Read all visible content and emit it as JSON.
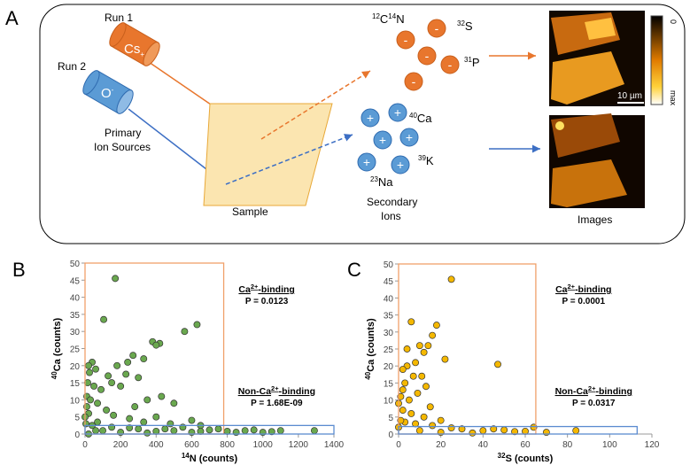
{
  "diagram": {
    "panel": "A",
    "run1": "Run 1",
    "run2": "Run 2",
    "cs": [
      "Cs",
      "+"
    ],
    "o": [
      "O",
      "-"
    ],
    "primary": [
      "Primary",
      "Ion Sources"
    ],
    "sample": "Sample",
    "secondary": [
      "Secondary",
      "Ions"
    ],
    "images": "Images",
    "anion_sign": "-",
    "cation_sign": "+",
    "ions": {
      "cn": [
        "12",
        "C",
        "14",
        "N"
      ],
      "s": [
        "32",
        "S"
      ],
      "p": [
        "31",
        "P"
      ],
      "ca": [
        "40",
        "Ca"
      ],
      "k": [
        "39",
        "K"
      ],
      "na": [
        "23",
        "Na"
      ]
    },
    "colorbar": [
      "0",
      "max"
    ],
    "scale_bar": "10 µm"
  },
  "chart_data": [
    {
      "type": "scatter",
      "panel": "B",
      "xlabel": [
        "14",
        "N (counts)"
      ],
      "ylabel": [
        "40",
        "Ca (counts)"
      ],
      "color": "#6aa84f",
      "xlim": [
        0,
        1400
      ],
      "ylim": [
        0,
        50
      ],
      "xticks": [
        0,
        200,
        400,
        600,
        800,
        1000,
        1200,
        1400
      ],
      "yticks": [
        0,
        5,
        10,
        15,
        20,
        25,
        30,
        35,
        40,
        45,
        50
      ],
      "annotations": [
        {
          "parts": [
            "Ca",
            "2+",
            "-binding"
          ],
          "p": "P = 0.0123"
        },
        {
          "parts": [
            "Non-Ca",
            "2+",
            "-binding"
          ],
          "p": "P = 1.68E-09"
        }
      ],
      "regions": [
        {
          "color": "#f0a06a",
          "xlim": [
            0,
            780
          ],
          "ylim": [
            0,
            50
          ]
        },
        {
          "color": "#5b8bd0",
          "xlim": [
            0,
            1400
          ],
          "ylim": [
            0,
            2.5
          ]
        }
      ],
      "x": [
        170,
        105,
        630,
        560,
        380,
        420,
        400,
        270,
        330,
        240,
        40,
        20,
        60,
        180,
        130,
        230,
        300,
        150,
        200,
        50,
        90,
        10,
        30,
        70,
        350,
        430,
        500,
        280,
        120,
        20,
        160,
        400,
        600,
        250,
        70,
        330,
        480,
        650,
        5,
        40,
        100,
        200,
        300,
        400,
        500,
        600,
        700,
        800,
        900,
        1000,
        1100,
        1290,
        150,
        250,
        350,
        450,
        550,
        650,
        750,
        850,
        950,
        1050,
        20,
        60,
        0,
        10,
        15,
        25
      ],
      "values": [
        45.5,
        33.5,
        32,
        30,
        27,
        26.5,
        26,
        23,
        22,
        21,
        21,
        20,
        19,
        20,
        17,
        17.5,
        16.5,
        15,
        14,
        14,
        13,
        11,
        10,
        9,
        10,
        11,
        9,
        8,
        7,
        6,
        5.5,
        5,
        4,
        4.5,
        3.5,
        3.5,
        3,
        2.5,
        3,
        2.5,
        1,
        0.5,
        1.5,
        0.8,
        1,
        0.5,
        1.2,
        0.8,
        1,
        0.5,
        1,
        1,
        2,
        1.8,
        0.3,
        1.5,
        2,
        0.8,
        1.5,
        0.5,
        1.2,
        0.7,
        0,
        1,
        5,
        8,
        15,
        18
      ]
    },
    {
      "type": "scatter",
      "panel": "C",
      "xlabel": [
        "32",
        "S (counts)"
      ],
      "ylabel": [
        "40",
        "Ca (counts)"
      ],
      "color": "#f5b800",
      "xlim": [
        0,
        120
      ],
      "ylim": [
        0,
        50
      ],
      "xticks": [
        0,
        20,
        40,
        60,
        80,
        100,
        120
      ],
      "yticks": [
        0,
        5,
        10,
        15,
        20,
        25,
        30,
        35,
        40,
        45,
        50
      ],
      "annotations": [
        {
          "parts": [
            "Ca",
            "2+",
            "-binding"
          ],
          "p": "P = 0.0001"
        },
        {
          "parts": [
            "Non-Ca",
            "2+",
            "-binding"
          ],
          "p": "P = 0.0317"
        }
      ],
      "regions": [
        {
          "color": "#f0a06a",
          "xlim": [
            0,
            65
          ],
          "ylim": [
            0,
            50
          ]
        },
        {
          "color": "#5b8bd0",
          "xlim": [
            0,
            113
          ],
          "ylim": [
            0,
            2.2
          ]
        }
      ],
      "x": [
        25,
        6,
        18,
        16,
        10,
        14,
        12,
        47,
        4,
        8,
        2,
        7,
        11,
        3,
        13,
        9,
        1,
        5,
        15,
        2,
        6,
        12,
        20,
        3,
        8,
        16,
        30,
        40,
        50,
        60,
        70,
        84,
        64,
        10,
        20,
        25,
        35,
        45,
        55,
        0,
        1,
        0,
        2,
        4,
        22
      ],
      "values": [
        45.5,
        33,
        32,
        29,
        26,
        26,
        24,
        20.5,
        20,
        21,
        19,
        17,
        17,
        15,
        14,
        12,
        11,
        10,
        8,
        7,
        6,
        5,
        4,
        3.5,
        3,
        2.5,
        1.5,
        1,
        1.2,
        0.8,
        0.5,
        1,
        2,
        1,
        0.5,
        1.8,
        0.3,
        1.5,
        0.7,
        2,
        4,
        9,
        13,
        25,
        22
      ]
    }
  ]
}
